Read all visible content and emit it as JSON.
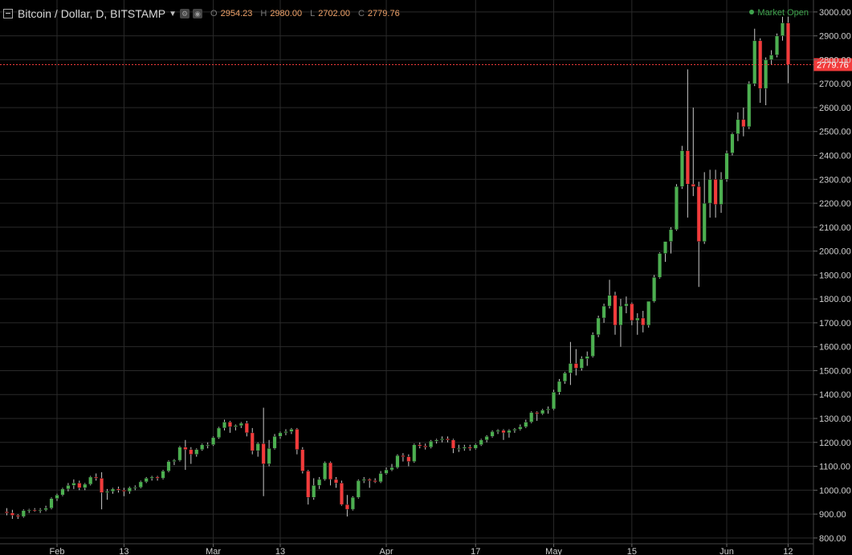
{
  "header": {
    "title": "Bitcoin / Dollar, D, BITSTAMP",
    "o_key": "O",
    "o": "2954.23",
    "h_key": "H",
    "h": "2980.00",
    "l_key": "L",
    "l": "2702.00",
    "c_key": "C",
    "c": "2779.76",
    "market_status": "Market Open"
  },
  "colors": {
    "up": "#4caf50",
    "down": "#f23b3b",
    "background": "#000000",
    "grid": "#2a2a2a",
    "last_price": "#f23b3b"
  },
  "chart_data": {
    "type": "candlestick",
    "title": "Bitcoin / Dollar, D, BITSTAMP",
    "xlabel": "",
    "ylabel": "",
    "ylim": [
      776,
      3050
    ],
    "y_ticks": [
      "3000.00",
      "2900.00",
      "2800.00",
      "2700.00",
      "2600.00",
      "2500.00",
      "2400.00",
      "2300.00",
      "2200.00",
      "2100.00",
      "2000.00",
      "1900.00",
      "1800.00",
      "1700.00",
      "1600.00",
      "1500.00",
      "1400.00",
      "1300.00",
      "1200.00",
      "1100.00",
      "1000.00",
      "900.00",
      "800.00"
    ],
    "x_ticks": [
      {
        "label": "Feb",
        "date": "2017-02-01"
      },
      {
        "label": "13",
        "date": "2017-02-13"
      },
      {
        "label": "Mar",
        "date": "2017-03-01"
      },
      {
        "label": "13",
        "date": "2017-03-13"
      },
      {
        "label": "Apr",
        "date": "2017-04-01"
      },
      {
        "label": "17",
        "date": "2017-04-17"
      },
      {
        "label": "May",
        "date": "2017-05-01"
      },
      {
        "label": "15",
        "date": "2017-05-15"
      },
      {
        "label": "Jun",
        "date": "2017-06-01"
      },
      {
        "label": "12",
        "date": "2017-06-12"
      }
    ],
    "last_price": 2779.76,
    "last_price_label": "2779.76",
    "grid": true,
    "candles": [
      {
        "date": "2017-01-23",
        "o": 910,
        "h": 925,
        "l": 895,
        "c": 905
      },
      {
        "date": "2017-01-24",
        "o": 905,
        "h": 918,
        "l": 880,
        "c": 895
      },
      {
        "date": "2017-01-25",
        "o": 895,
        "h": 900,
        "l": 880,
        "c": 890
      },
      {
        "date": "2017-01-26",
        "o": 890,
        "h": 920,
        "l": 885,
        "c": 915
      },
      {
        "date": "2017-01-27",
        "o": 915,
        "h": 922,
        "l": 905,
        "c": 918
      },
      {
        "date": "2017-01-28",
        "o": 918,
        "h": 925,
        "l": 910,
        "c": 915
      },
      {
        "date": "2017-01-29",
        "o": 915,
        "h": 925,
        "l": 905,
        "c": 918
      },
      {
        "date": "2017-01-30",
        "o": 918,
        "h": 935,
        "l": 912,
        "c": 925
      },
      {
        "date": "2017-01-31",
        "o": 925,
        "h": 970,
        "l": 920,
        "c": 965
      },
      {
        "date": "2017-02-01",
        "o": 965,
        "h": 985,
        "l": 955,
        "c": 980
      },
      {
        "date": "2017-02-02",
        "o": 980,
        "h": 1010,
        "l": 975,
        "c": 1005
      },
      {
        "date": "2017-02-03",
        "o": 1005,
        "h": 1030,
        "l": 995,
        "c": 1020
      },
      {
        "date": "2017-02-04",
        "o": 1020,
        "h": 1045,
        "l": 1005,
        "c": 1030
      },
      {
        "date": "2017-02-05",
        "o": 1030,
        "h": 1040,
        "l": 1000,
        "c": 1010
      },
      {
        "date": "2017-02-06",
        "o": 1010,
        "h": 1030,
        "l": 1000,
        "c": 1025
      },
      {
        "date": "2017-02-07",
        "o": 1025,
        "h": 1060,
        "l": 1020,
        "c": 1055
      },
      {
        "date": "2017-02-08",
        "o": 1055,
        "h": 1070,
        "l": 1040,
        "c": 1050
      },
      {
        "date": "2017-02-09",
        "o": 1050,
        "h": 1075,
        "l": 920,
        "c": 990
      },
      {
        "date": "2017-02-10",
        "o": 990,
        "h": 1005,
        "l": 960,
        "c": 995
      },
      {
        "date": "2017-02-11",
        "o": 995,
        "h": 1010,
        "l": 985,
        "c": 1005
      },
      {
        "date": "2017-02-12",
        "o": 1005,
        "h": 1015,
        "l": 990,
        "c": 1000
      },
      {
        "date": "2017-02-13",
        "o": 1000,
        "h": 1010,
        "l": 975,
        "c": 995
      },
      {
        "date": "2017-02-14",
        "o": 995,
        "h": 1015,
        "l": 985,
        "c": 1010
      },
      {
        "date": "2017-02-15",
        "o": 1010,
        "h": 1020,
        "l": 1000,
        "c": 1012
      },
      {
        "date": "2017-02-16",
        "o": 1012,
        "h": 1040,
        "l": 1008,
        "c": 1035
      },
      {
        "date": "2017-02-17",
        "o": 1035,
        "h": 1055,
        "l": 1030,
        "c": 1050
      },
      {
        "date": "2017-02-18",
        "o": 1050,
        "h": 1060,
        "l": 1040,
        "c": 1055
      },
      {
        "date": "2017-02-19",
        "o": 1055,
        "h": 1060,
        "l": 1040,
        "c": 1050
      },
      {
        "date": "2017-02-20",
        "o": 1050,
        "h": 1085,
        "l": 1045,
        "c": 1080
      },
      {
        "date": "2017-02-21",
        "o": 1080,
        "h": 1125,
        "l": 1075,
        "c": 1120
      },
      {
        "date": "2017-02-22",
        "o": 1120,
        "h": 1130,
        "l": 1105,
        "c": 1125
      },
      {
        "date": "2017-02-23",
        "o": 1125,
        "h": 1185,
        "l": 1120,
        "c": 1180
      },
      {
        "date": "2017-02-24",
        "o": 1180,
        "h": 1210,
        "l": 1085,
        "c": 1170
      },
      {
        "date": "2017-02-25",
        "o": 1170,
        "h": 1180,
        "l": 1110,
        "c": 1150
      },
      {
        "date": "2017-02-26",
        "o": 1150,
        "h": 1175,
        "l": 1140,
        "c": 1170
      },
      {
        "date": "2017-02-27",
        "o": 1170,
        "h": 1195,
        "l": 1165,
        "c": 1190
      },
      {
        "date": "2017-02-28",
        "o": 1190,
        "h": 1200,
        "l": 1175,
        "c": 1190
      },
      {
        "date": "2017-03-01",
        "o": 1190,
        "h": 1225,
        "l": 1185,
        "c": 1220
      },
      {
        "date": "2017-03-02",
        "o": 1220,
        "h": 1265,
        "l": 1215,
        "c": 1260
      },
      {
        "date": "2017-03-03",
        "o": 1260,
        "h": 1295,
        "l": 1250,
        "c": 1285
      },
      {
        "date": "2017-03-04",
        "o": 1285,
        "h": 1290,
        "l": 1240,
        "c": 1265
      },
      {
        "date": "2017-03-05",
        "o": 1265,
        "h": 1275,
        "l": 1250,
        "c": 1270
      },
      {
        "date": "2017-03-06",
        "o": 1270,
        "h": 1285,
        "l": 1260,
        "c": 1280
      },
      {
        "date": "2017-03-07",
        "o": 1280,
        "h": 1290,
        "l": 1225,
        "c": 1240
      },
      {
        "date": "2017-03-08",
        "o": 1240,
        "h": 1260,
        "l": 1150,
        "c": 1165
      },
      {
        "date": "2017-03-09",
        "o": 1165,
        "h": 1200,
        "l": 1140,
        "c": 1195
      },
      {
        "date": "2017-03-10",
        "o": 1195,
        "h": 1345,
        "l": 975,
        "c": 1110
      },
      {
        "date": "2017-03-11",
        "o": 1110,
        "h": 1210,
        "l": 1100,
        "c": 1175
      },
      {
        "date": "2017-03-12",
        "o": 1175,
        "h": 1235,
        "l": 1170,
        "c": 1225
      },
      {
        "date": "2017-03-13",
        "o": 1225,
        "h": 1245,
        "l": 1215,
        "c": 1240
      },
      {
        "date": "2017-03-14",
        "o": 1240,
        "h": 1255,
        "l": 1230,
        "c": 1245
      },
      {
        "date": "2017-03-15",
        "o": 1245,
        "h": 1260,
        "l": 1235,
        "c": 1255
      },
      {
        "date": "2017-03-16",
        "o": 1255,
        "h": 1260,
        "l": 1150,
        "c": 1170
      },
      {
        "date": "2017-03-17",
        "o": 1170,
        "h": 1180,
        "l": 1070,
        "c": 1080
      },
      {
        "date": "2017-03-18",
        "o": 1080,
        "h": 1085,
        "l": 940,
        "c": 970
      },
      {
        "date": "2017-03-19",
        "o": 970,
        "h": 1050,
        "l": 960,
        "c": 1020
      },
      {
        "date": "2017-03-20",
        "o": 1020,
        "h": 1055,
        "l": 1005,
        "c": 1045
      },
      {
        "date": "2017-03-21",
        "o": 1045,
        "h": 1120,
        "l": 1040,
        "c": 1115
      },
      {
        "date": "2017-03-22",
        "o": 1115,
        "h": 1120,
        "l": 1020,
        "c": 1045
      },
      {
        "date": "2017-03-23",
        "o": 1045,
        "h": 1055,
        "l": 1010,
        "c": 1030
      },
      {
        "date": "2017-03-24",
        "o": 1030,
        "h": 1040,
        "l": 935,
        "c": 940
      },
      {
        "date": "2017-03-25",
        "o": 940,
        "h": 980,
        "l": 890,
        "c": 920
      },
      {
        "date": "2017-03-26",
        "o": 920,
        "h": 975,
        "l": 915,
        "c": 970
      },
      {
        "date": "2017-03-27",
        "o": 970,
        "h": 1045,
        "l": 965,
        "c": 1040
      },
      {
        "date": "2017-03-28",
        "o": 1040,
        "h": 1055,
        "l": 1030,
        "c": 1045
      },
      {
        "date": "2017-03-29",
        "o": 1045,
        "h": 1050,
        "l": 1010,
        "c": 1040
      },
      {
        "date": "2017-03-30",
        "o": 1040,
        "h": 1050,
        "l": 1030,
        "c": 1035
      },
      {
        "date": "2017-03-31",
        "o": 1035,
        "h": 1080,
        "l": 1030,
        "c": 1070
      },
      {
        "date": "2017-04-01",
        "o": 1070,
        "h": 1095,
        "l": 1065,
        "c": 1085
      },
      {
        "date": "2017-04-02",
        "o": 1085,
        "h": 1110,
        "l": 1080,
        "c": 1095
      },
      {
        "date": "2017-04-03",
        "o": 1095,
        "h": 1150,
        "l": 1090,
        "c": 1145
      },
      {
        "date": "2017-04-04",
        "o": 1145,
        "h": 1155,
        "l": 1120,
        "c": 1140
      },
      {
        "date": "2017-04-05",
        "o": 1140,
        "h": 1150,
        "l": 1100,
        "c": 1120
      },
      {
        "date": "2017-04-06",
        "o": 1120,
        "h": 1195,
        "l": 1115,
        "c": 1190
      },
      {
        "date": "2017-04-07",
        "o": 1190,
        "h": 1200,
        "l": 1175,
        "c": 1185
      },
      {
        "date": "2017-04-08",
        "o": 1185,
        "h": 1195,
        "l": 1170,
        "c": 1180
      },
      {
        "date": "2017-04-09",
        "o": 1180,
        "h": 1210,
        "l": 1175,
        "c": 1205
      },
      {
        "date": "2017-04-10",
        "o": 1205,
        "h": 1215,
        "l": 1195,
        "c": 1210
      },
      {
        "date": "2017-04-11",
        "o": 1210,
        "h": 1225,
        "l": 1200,
        "c": 1215
      },
      {
        "date": "2017-04-12",
        "o": 1215,
        "h": 1225,
        "l": 1200,
        "c": 1210
      },
      {
        "date": "2017-04-13",
        "o": 1210,
        "h": 1215,
        "l": 1155,
        "c": 1175
      },
      {
        "date": "2017-04-14",
        "o": 1175,
        "h": 1190,
        "l": 1160,
        "c": 1175
      },
      {
        "date": "2017-04-15",
        "o": 1175,
        "h": 1190,
        "l": 1165,
        "c": 1180
      },
      {
        "date": "2017-04-16",
        "o": 1180,
        "h": 1190,
        "l": 1165,
        "c": 1175
      },
      {
        "date": "2017-04-17",
        "o": 1175,
        "h": 1195,
        "l": 1170,
        "c": 1190
      },
      {
        "date": "2017-04-18",
        "o": 1190,
        "h": 1215,
        "l": 1185,
        "c": 1210
      },
      {
        "date": "2017-04-19",
        "o": 1210,
        "h": 1230,
        "l": 1200,
        "c": 1225
      },
      {
        "date": "2017-04-20",
        "o": 1225,
        "h": 1250,
        "l": 1220,
        "c": 1245
      },
      {
        "date": "2017-04-21",
        "o": 1245,
        "h": 1255,
        "l": 1235,
        "c": 1250
      },
      {
        "date": "2017-04-22",
        "o": 1250,
        "h": 1255,
        "l": 1210,
        "c": 1240
      },
      {
        "date": "2017-04-23",
        "o": 1240,
        "h": 1255,
        "l": 1220,
        "c": 1250
      },
      {
        "date": "2017-04-24",
        "o": 1250,
        "h": 1260,
        "l": 1240,
        "c": 1255
      },
      {
        "date": "2017-04-25",
        "o": 1255,
        "h": 1275,
        "l": 1250,
        "c": 1265
      },
      {
        "date": "2017-04-26",
        "o": 1265,
        "h": 1295,
        "l": 1260,
        "c": 1285
      },
      {
        "date": "2017-04-27",
        "o": 1285,
        "h": 1330,
        "l": 1280,
        "c": 1325
      },
      {
        "date": "2017-04-28",
        "o": 1325,
        "h": 1330,
        "l": 1290,
        "c": 1320
      },
      {
        "date": "2017-04-29",
        "o": 1320,
        "h": 1340,
        "l": 1315,
        "c": 1335
      },
      {
        "date": "2017-04-30",
        "o": 1335,
        "h": 1350,
        "l": 1320,
        "c": 1340
      },
      {
        "date": "2017-05-01",
        "o": 1340,
        "h": 1420,
        "l": 1335,
        "c": 1410
      },
      {
        "date": "2017-05-02",
        "o": 1410,
        "h": 1465,
        "l": 1400,
        "c": 1455
      },
      {
        "date": "2017-05-03",
        "o": 1455,
        "h": 1495,
        "l": 1445,
        "c": 1490
      },
      {
        "date": "2017-05-04",
        "o": 1490,
        "h": 1620,
        "l": 1440,
        "c": 1530
      },
      {
        "date": "2017-05-05",
        "o": 1530,
        "h": 1590,
        "l": 1480,
        "c": 1510
      },
      {
        "date": "2017-05-06",
        "o": 1510,
        "h": 1560,
        "l": 1500,
        "c": 1550
      },
      {
        "date": "2017-05-07",
        "o": 1550,
        "h": 1580,
        "l": 1520,
        "c": 1560
      },
      {
        "date": "2017-05-08",
        "o": 1560,
        "h": 1660,
        "l": 1555,
        "c": 1650
      },
      {
        "date": "2017-05-09",
        "o": 1650,
        "h": 1730,
        "l": 1640,
        "c": 1720
      },
      {
        "date": "2017-05-10",
        "o": 1720,
        "h": 1780,
        "l": 1700,
        "c": 1770
      },
      {
        "date": "2017-05-11",
        "o": 1770,
        "h": 1880,
        "l": 1760,
        "c": 1815
      },
      {
        "date": "2017-05-12",
        "o": 1815,
        "h": 1830,
        "l": 1650,
        "c": 1690
      },
      {
        "date": "2017-05-13",
        "o": 1690,
        "h": 1800,
        "l": 1600,
        "c": 1770
      },
      {
        "date": "2017-05-14",
        "o": 1770,
        "h": 1810,
        "l": 1740,
        "c": 1780
      },
      {
        "date": "2017-05-15",
        "o": 1780,
        "h": 1785,
        "l": 1690,
        "c": 1710
      },
      {
        "date": "2017-05-16",
        "o": 1710,
        "h": 1740,
        "l": 1650,
        "c": 1720
      },
      {
        "date": "2017-05-17",
        "o": 1720,
        "h": 1750,
        "l": 1660,
        "c": 1690
      },
      {
        "date": "2017-05-18",
        "o": 1690,
        "h": 1790,
        "l": 1680,
        "c": 1790
      },
      {
        "date": "2017-05-19",
        "o": 1790,
        "h": 1900,
        "l": 1785,
        "c": 1890
      },
      {
        "date": "2017-05-20",
        "o": 1890,
        "h": 1995,
        "l": 1885,
        "c": 1990
      },
      {
        "date": "2017-05-21",
        "o": 1990,
        "h": 2040,
        "l": 1955,
        "c": 2040
      },
      {
        "date": "2017-05-22",
        "o": 2040,
        "h": 2100,
        "l": 1990,
        "c": 2090
      },
      {
        "date": "2017-05-23",
        "o": 2090,
        "h": 2280,
        "l": 2085,
        "c": 2270
      },
      {
        "date": "2017-05-24",
        "o": 2270,
        "h": 2440,
        "l": 2260,
        "c": 2420
      },
      {
        "date": "2017-05-25",
        "o": 2420,
        "h": 2760,
        "l": 2140,
        "c": 2280
      },
      {
        "date": "2017-05-26",
        "o": 2280,
        "h": 2600,
        "l": 2230,
        "c": 2270
      },
      {
        "date": "2017-05-27",
        "o": 2270,
        "h": 2290,
        "l": 1850,
        "c": 2040
      },
      {
        "date": "2017-05-28",
        "o": 2040,
        "h": 2330,
        "l": 2030,
        "c": 2200
      },
      {
        "date": "2017-05-29",
        "o": 2200,
        "h": 2340,
        "l": 2140,
        "c": 2300
      },
      {
        "date": "2017-05-30",
        "o": 2300,
        "h": 2340,
        "l": 2140,
        "c": 2195
      },
      {
        "date": "2017-05-31",
        "o": 2195,
        "h": 2330,
        "l": 2160,
        "c": 2300
      },
      {
        "date": "2017-06-01",
        "o": 2300,
        "h": 2420,
        "l": 2290,
        "c": 2410
      },
      {
        "date": "2017-06-02",
        "o": 2410,
        "h": 2495,
        "l": 2400,
        "c": 2490
      },
      {
        "date": "2017-06-03",
        "o": 2490,
        "h": 2580,
        "l": 2460,
        "c": 2550
      },
      {
        "date": "2017-06-04",
        "o": 2550,
        "h": 2600,
        "l": 2480,
        "c": 2520
      },
      {
        "date": "2017-06-05",
        "o": 2520,
        "h": 2710,
        "l": 2510,
        "c": 2700
      },
      {
        "date": "2017-06-06",
        "o": 2700,
        "h": 2930,
        "l": 2690,
        "c": 2880
      },
      {
        "date": "2017-06-07",
        "o": 2880,
        "h": 2890,
        "l": 2620,
        "c": 2680
      },
      {
        "date": "2017-06-08",
        "o": 2680,
        "h": 2810,
        "l": 2610,
        "c": 2800
      },
      {
        "date": "2017-06-09",
        "o": 2800,
        "h": 2840,
        "l": 2780,
        "c": 2820
      },
      {
        "date": "2017-06-10",
        "o": 2820,
        "h": 2910,
        "l": 2810,
        "c": 2900
      },
      {
        "date": "2017-06-11",
        "o": 2900,
        "h": 2980,
        "l": 2880,
        "c": 2954.23
      },
      {
        "date": "2017-06-12",
        "o": 2954.23,
        "h": 2980,
        "l": 2702,
        "c": 2779.76
      }
    ]
  }
}
